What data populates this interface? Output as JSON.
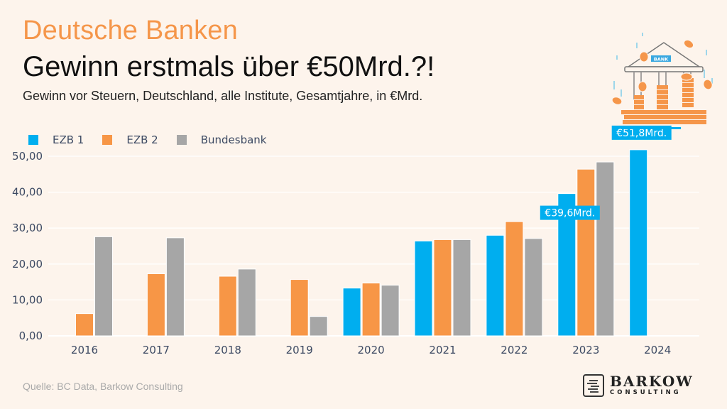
{
  "header": {
    "kicker": "Deutsche Banken",
    "headline": "Gewinn erstmals über €50Mrd.?!",
    "subtitle": "Gewinn vor Steuern, Deutschland, alle Institute, Gesamtjahre, in €Mrd."
  },
  "illustration": {
    "icon": "bank-building-with-coins-icon",
    "sign_text": "BANK"
  },
  "footer": {
    "source": "Quelle: BC Data, Barkow Consulting",
    "logo_main": "BARKOW",
    "logo_sub": "CONSULTING"
  },
  "colors": {
    "background": "#fdf4ec",
    "ezb1": "#00aeef",
    "ezb2": "#f79646",
    "bundesbank": "#a6a6a6",
    "kicker": "#f5964a",
    "axis_text": "#3d4a63"
  },
  "chart_data": {
    "type": "bar",
    "title": "Gewinn erstmals über €50Mrd.?!",
    "subtitle": "Gewinn vor Steuern, Deutschland, alle Institute, Gesamtjahre, in €Mrd.",
    "xlabel": "",
    "ylabel": "",
    "ylim": [
      0,
      50
    ],
    "yticks": [
      0,
      10,
      20,
      30,
      40,
      50
    ],
    "ytick_labels": [
      "0,00",
      "10,00",
      "20,00",
      "30,00",
      "40,00",
      "50,00"
    ],
    "grid": true,
    "legend_position": "top-left",
    "categories": [
      "2016",
      "2017",
      "2018",
      "2019",
      "2020",
      "2021",
      "2022",
      "2023",
      "2024"
    ],
    "series": [
      {
        "name": "EZB 1",
        "color": "#00aeef",
        "values": [
          null,
          null,
          null,
          null,
          13.3,
          26.4,
          28.0,
          39.6,
          51.8
        ]
      },
      {
        "name": "EZB 2",
        "color": "#f79646",
        "values": [
          6.2,
          17.3,
          16.6,
          15.7,
          14.7,
          26.8,
          31.8,
          46.4,
          null
        ]
      },
      {
        "name": "Bundesbank",
        "color": "#a6a6a6",
        "values": [
          27.6,
          27.3,
          18.6,
          5.4,
          14.1,
          26.8,
          27.1,
          48.4,
          null
        ]
      }
    ],
    "annotations": [
      {
        "series": "EZB 1",
        "category": "2023",
        "text": "€39,6Mrd."
      },
      {
        "series": "EZB 1",
        "category": "2024",
        "text": "€51,8Mrd."
      }
    ]
  }
}
